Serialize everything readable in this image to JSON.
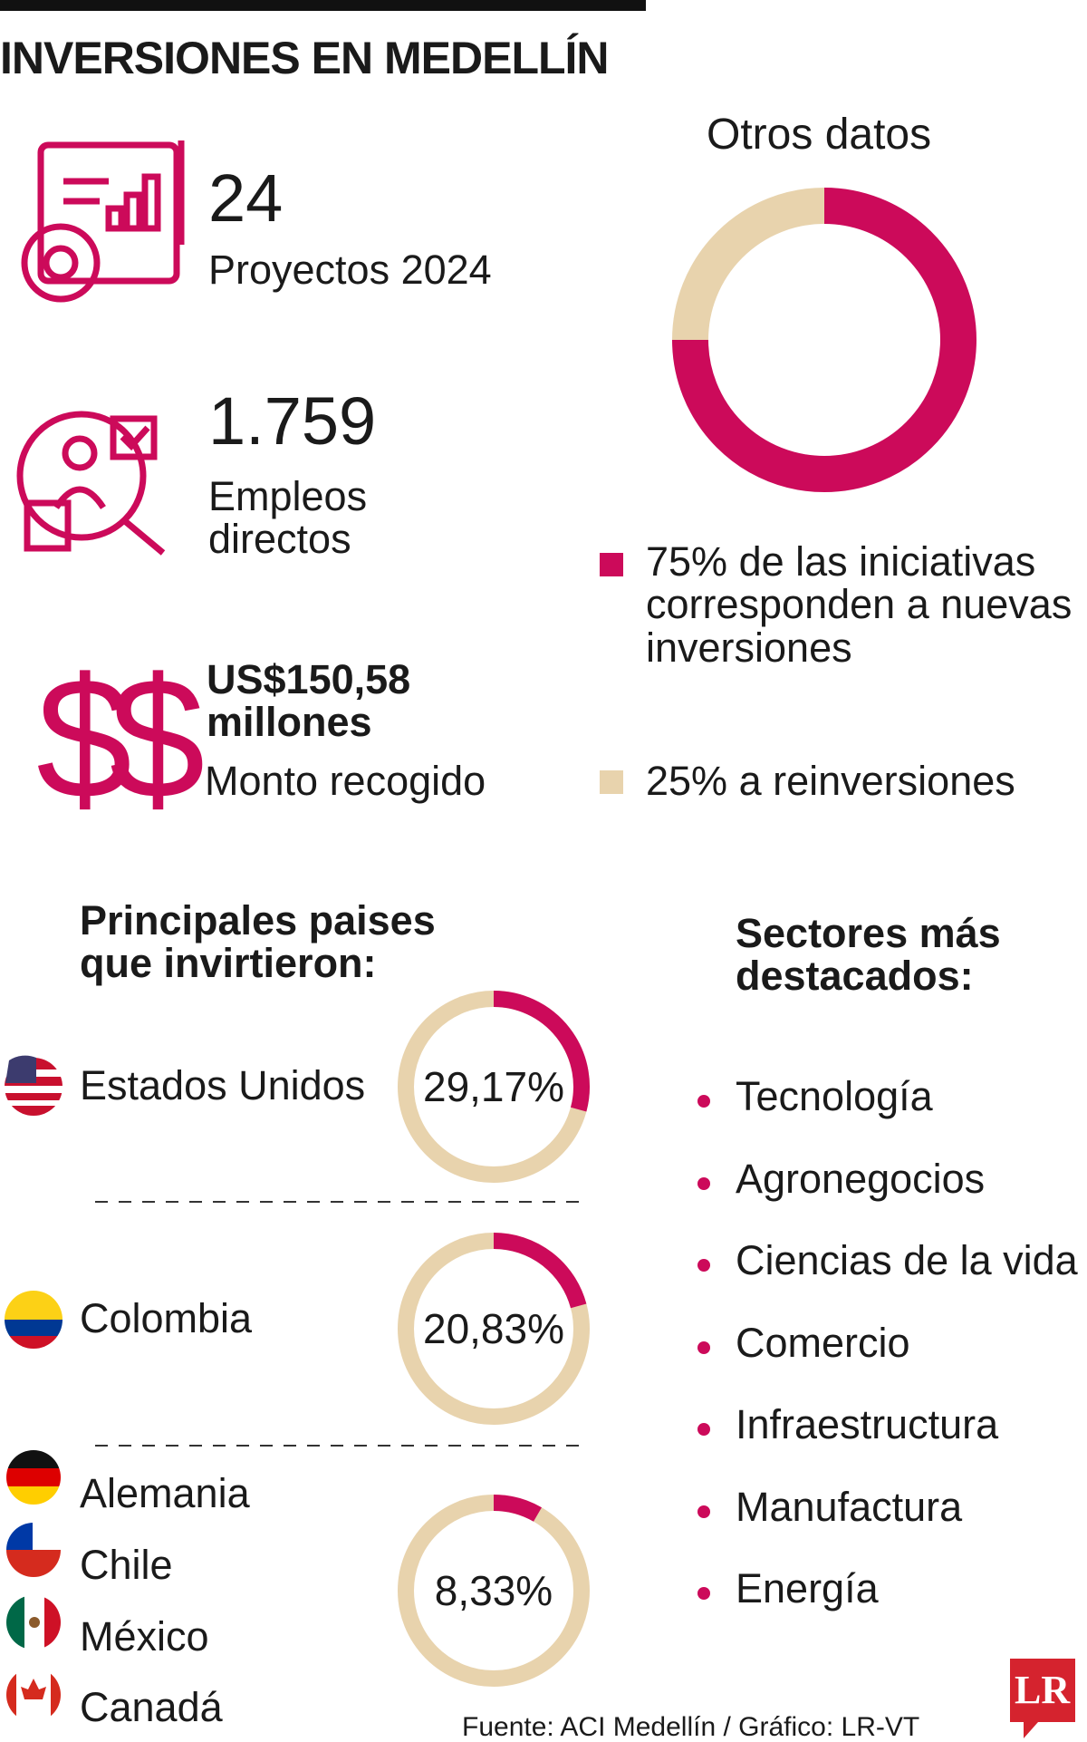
{
  "header": {
    "title": "INVERSIONES EN MEDELLÍN"
  },
  "stats": [
    {
      "value": "24",
      "label": "Proyectos 2024"
    },
    {
      "value": "1.759",
      "label": "Empleos directos"
    },
    {
      "value": "US$150,58 millones",
      "label": "Monto recogido"
    }
  ],
  "otros": {
    "title": "Otros datos",
    "values": [
      75,
      25
    ],
    "value_labels": [
      "75%",
      "25%"
    ],
    "texts": [
      "de las iniciativas corresponden a nuevas inversiones",
      "a reinversiones"
    ],
    "colors": [
      "#cc0a5a",
      "#e8d3ad"
    ]
  },
  "paises": {
    "title": "Principales paises que invirtieron:",
    "groups": [
      {
        "countries": [
          "Estados Unidos"
        ],
        "value": 29.17,
        "value_label": "29,17%"
      },
      {
        "countries": [
          "Colombia"
        ],
        "value": 20.83,
        "value_label": "20,83%"
      },
      {
        "countries": [
          "Alemania",
          "Chile",
          "México",
          "Canadá"
        ],
        "value": 8.33,
        "value_label": "8,33%"
      }
    ]
  },
  "sectores": {
    "title": "Sectores más destacados:",
    "items": [
      "Tecnología",
      "Agronegocios",
      "Ciencias de la vida",
      "Comercio",
      "Infraestructura",
      "Manufactura",
      "Energía"
    ]
  },
  "source": "Fuente: ACI Medellín / Gráfico: LR-VT",
  "logo": "LR"
}
